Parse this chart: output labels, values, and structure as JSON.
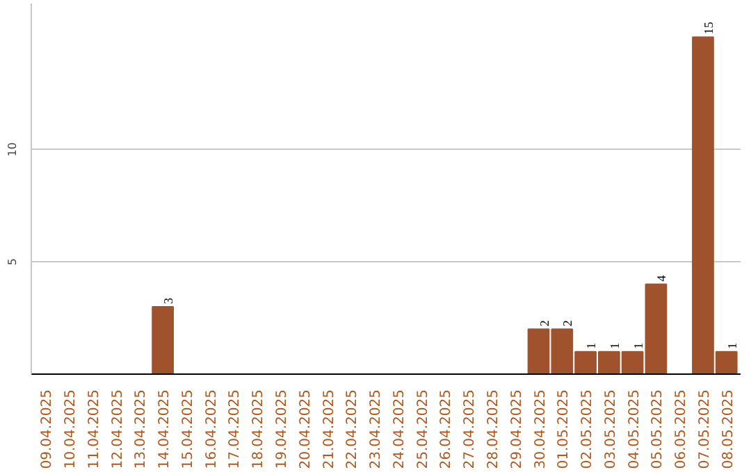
{
  "chart_data": {
    "type": "bar",
    "categories": [
      "09.04.2025",
      "10.04.2025",
      "11.04.2025",
      "12.04.2025",
      "13.04.2025",
      "14.04.2025",
      "15.04.2025",
      "16.04.2025",
      "17.04.2025",
      "18.04.2025",
      "19.04.2025",
      "20.04.2025",
      "21.04.2025",
      "22.04.2025",
      "23.04.2025",
      "24.04.2025",
      "25.04.2025",
      "26.04.2025",
      "27.04.2025",
      "28.04.2025",
      "29.04.2025",
      "30.04.2025",
      "01.05.2025",
      "02.05.2025",
      "03.05.2025",
      "04.05.2025",
      "05.05.2025",
      "06.05.2025",
      "07.05.2025",
      "08.05.2025"
    ],
    "values": [
      0,
      0,
      0,
      0,
      0,
      3,
      0,
      0,
      0,
      0,
      0,
      0,
      0,
      0,
      0,
      0,
      0,
      0,
      0,
      0,
      0,
      2,
      2,
      1,
      1,
      1,
      4,
      0,
      15,
      1
    ],
    "value_labels": [
      null,
      null,
      null,
      null,
      null,
      "3",
      null,
      null,
      null,
      null,
      null,
      null,
      null,
      null,
      null,
      null,
      null,
      null,
      null,
      null,
      null,
      "2",
      "2",
      "1",
      "1",
      "1",
      "4",
      null,
      "15",
      "1"
    ],
    "color": "#a0522d",
    "ylim": [
      0,
      16.5
    ],
    "yticks": [
      5,
      10
    ],
    "grid": "y"
  }
}
